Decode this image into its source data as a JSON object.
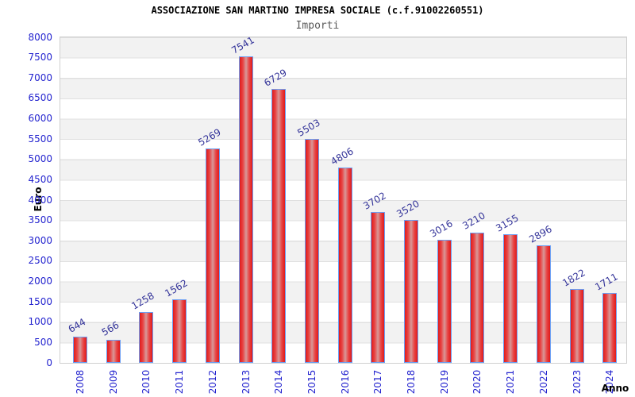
{
  "chart_data": {
    "type": "bar",
    "title": "ASSOCIAZIONE SAN MARTINO IMPRESA SOCIALE (c.f.91002260551)",
    "subtitle": "Importi",
    "xlabel": "Anno",
    "ylabel": "Euro",
    "categories": [
      "2008",
      "2009",
      "2010",
      "2011",
      "2012",
      "2013",
      "2014",
      "2015",
      "2016",
      "2017",
      "2018",
      "2019",
      "2020",
      "2021",
      "2022",
      "2023",
      "2024"
    ],
    "values": [
      644,
      566,
      1258,
      1562,
      5269,
      7541,
      6729,
      5503,
      4806,
      3702,
      3520,
      3016,
      3210,
      3155,
      2896,
      1822,
      1711
    ],
    "ylim": [
      0,
      8000
    ],
    "ytick_step": 500,
    "legend": "none",
    "grid": "horizontal gridlines with alternating gray/white bands",
    "bar_value_labels_rotated_deg": -30,
    "x_tick_labels_rotated_deg": -90,
    "colors": {
      "bar_edge_red": "#e01b1b",
      "bar_inner_red": "#e84444",
      "bar_center_highlight": "#d89898",
      "bar_border_blue": "#6b9ef3",
      "tick_label_blue": "#2424cf",
      "value_label_navy": "#333399",
      "band_gray": "#f2f2f2",
      "band_white": "#ffffff",
      "gridline_gray": "#e0e0e0",
      "plot_border_gray": "#cfcfcf",
      "title_black": "#000000",
      "subtitle_gray": "#595959"
    }
  }
}
